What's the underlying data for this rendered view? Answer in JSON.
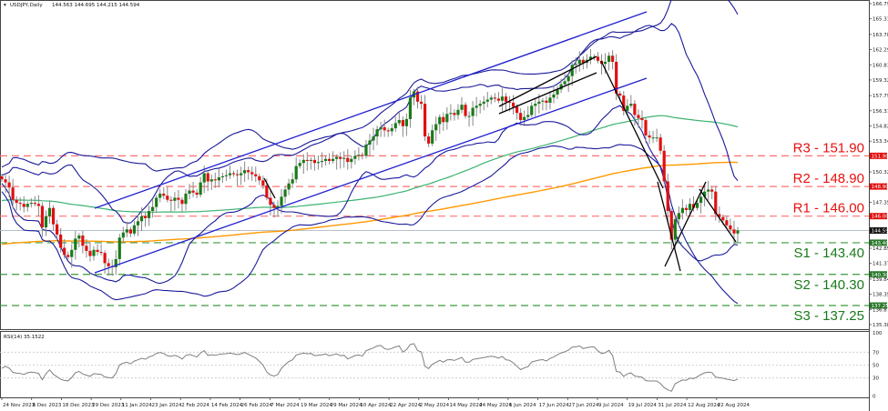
{
  "header": {
    "symbol_label": "USDJPY,Daily",
    "ohlc": "144.563 144.695 144.215 144.594"
  },
  "rsi_header": "RSI(14) 35.1522",
  "colors": {
    "bull": "#1a7a1a",
    "bear": "#e01010",
    "wick": "#888888",
    "bollinger": "#1a1a9a",
    "channel": "#2020d0",
    "ma_green": "#3cb371",
    "ma_orange": "#ff9900",
    "resistance": "#ff7070",
    "support": "#3a9a3a",
    "resistance_text": "#e81010",
    "support_text": "#1a7a1a",
    "trend": "#000000",
    "current_price_line": "#b8c0c8",
    "rsi_line": "#7f7f7f"
  },
  "chart_data": [
    {
      "type": "candlestick",
      "title": "USDJPY,Daily",
      "ohlc_last": {
        "open": 144.563,
        "high": 144.695,
        "low": 144.215,
        "close": 144.594
      },
      "y_axis": {
        "ticks": [
          166.795,
          165.31,
          163.78,
          162.295,
          160.81,
          159.325,
          157.795,
          156.31,
          154.825,
          153.34,
          150.325,
          147.355,
          142.855,
          141.37,
          139.84,
          138.355,
          136.87,
          135.385
        ],
        "range": [
          135.385,
          166.795
        ]
      },
      "x_axis": {
        "ticks": [
          "24 Nov 2023",
          "6 Dec 2023",
          "18 Dec 2023",
          "29 Dec 2023",
          "11 Jan 2024",
          "23 Jan 2024",
          "2 Feb 2024",
          "14 Feb 2024",
          "26 Feb 2024",
          "7 Mar 2024",
          "19 Mar 2024",
          "29 Mar 2024",
          "10 Apr 2024",
          "22 Apr 2024",
          "2 May 2024",
          "14 May 2024",
          "24 May 2024",
          "5 Jun 2024",
          "17 Jun 2024",
          "27 Jun 2024",
          "9 Jul 2024",
          "19 Jul 2024",
          "31 Jul 2024",
          "12 Aug 2024",
          "22 Aug 2024"
        ]
      },
      "levels": [
        {
          "name": "R3",
          "label": "R3 - 151.90",
          "value": 151.9,
          "kind": "resistance",
          "tag": "151.900"
        },
        {
          "name": "R2",
          "label": "R2 - 148.90",
          "value": 148.9,
          "kind": "resistance",
          "tag": "148.900"
        },
        {
          "name": "R1",
          "label": "R1 - 146.00",
          "value": 146.0,
          "kind": "resistance",
          "tag": "146.000"
        },
        {
          "name": "S1",
          "label": "S1 - 143.40",
          "value": 143.4,
          "kind": "support",
          "tag": "143.400"
        },
        {
          "name": "S2",
          "label": "S2 - 140.30",
          "value": 140.3,
          "kind": "support",
          "tag": "140.300"
        },
        {
          "name": "S3",
          "label": "S3 - 137.25",
          "value": 137.25,
          "kind": "support",
          "tag": "137.250"
        }
      ],
      "current_price": {
        "value": 144.594,
        "tag": "144.594"
      },
      "close_series": [
        149.6,
        149.3,
        148.8,
        147.6,
        147.3,
        147.2,
        146.9,
        147.2,
        147.3,
        147.2,
        147.0,
        144.9,
        146.0,
        146.8,
        145.2,
        144.2,
        142.9,
        142.2,
        142.0,
        142.7,
        143.8,
        144.1,
        143.1,
        142.6,
        142.1,
        142.7,
        142.5,
        142.4,
        141.4,
        141.1,
        141.0,
        141.8,
        143.9,
        144.4,
        144.7,
        144.3,
        145.1,
        145.5,
        146.0,
        145.8,
        146.5,
        146.9,
        147.8,
        148.2,
        148.0,
        147.6,
        147.5,
        147.8,
        147.6,
        147.2,
        148.2,
        148.5,
        148.3,
        148.1,
        149.3,
        150.2,
        149.4,
        149.6,
        149.5,
        149.8,
        149.9,
        150.0,
        150.2,
        150.1,
        150.0,
        150.2,
        150.5,
        150.3,
        150.1,
        149.9,
        149.5,
        149.0,
        147.8,
        147.1,
        146.8,
        147.0,
        147.9,
        148.6,
        149.2,
        149.6,
        150.9,
        151.2,
        151.5,
        151.4,
        151.5,
        151.2,
        151.3,
        151.4,
        151.6,
        151.4,
        151.6,
        151.8,
        151.6,
        151.7,
        151.3,
        151.6,
        151.9,
        152.0,
        151.9,
        153.0,
        153.4,
        153.8,
        154.5,
        154.7,
        154.4,
        154.3,
        154.6,
        155.1,
        155.4,
        154.8,
        155.5,
        157.6,
        158.2,
        157.2,
        157.0,
        153.8,
        153.1,
        154.4,
        155.0,
        155.7,
        155.2,
        156.0,
        156.1,
        155.9,
        156.4,
        156.9,
        155.8,
        155.8,
        156.6,
        156.8,
        157.0,
        157.2,
        157.4,
        157.6,
        157.5,
        157.3,
        157.7,
        157.2,
        157.1,
        156.7,
        156.1,
        155.4,
        155.7,
        155.9,
        156.8,
        157.0,
        157.2,
        157.3,
        157.1,
        157.6,
        157.9,
        158.4,
        158.9,
        159.2,
        159.7,
        160.8,
        160.9,
        161.3,
        161.0,
        161.3,
        161.6,
        161.6,
        161.2,
        160.9,
        161.1,
        161.7,
        161.1,
        158.0,
        157.8,
        156.3,
        156.8,
        157.0,
        155.9,
        155.6,
        155.4,
        153.9,
        153.7,
        153.7,
        153.7,
        152.4,
        149.4,
        146.5,
        143.7,
        145.7,
        146.3,
        146.8,
        146.6,
        147.2,
        146.8,
        147.3,
        147.9,
        148.4,
        148.6,
        148.4,
        146.2,
        145.9,
        145.6,
        145.1,
        144.7,
        144.3,
        144.6
      ],
      "rsi": {
        "title": "RSI(14) 35.1522",
        "range": [
          0,
          100
        ],
        "levels": [
          70,
          50,
          30
        ],
        "axis_labels": [
          "100",
          "70",
          "50",
          "30",
          "0"
        ],
        "last": 35.1522
      }
    }
  ]
}
